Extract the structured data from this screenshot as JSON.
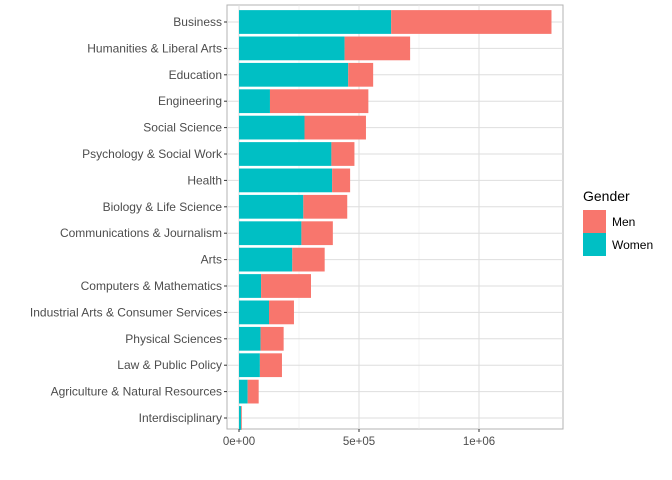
{
  "chart_data": {
    "type": "bar",
    "orientation": "horizontal",
    "stacked": true,
    "title": "",
    "xlabel": "",
    "ylabel": "",
    "categories": [
      "Business",
      "Humanities & Liberal Arts",
      "Education",
      "Engineering",
      "Social Science",
      "Psychology & Social Work",
      "Health",
      "Biology & Life Science",
      "Communications & Journalism",
      "Arts",
      "Computers & Mathematics",
      "Industrial Arts & Consumer Services",
      "Physical Sciences",
      "Law & Public Policy",
      "Agriculture & Natural Resources",
      "Interdisciplinary"
    ],
    "series": [
      {
        "name": "Women",
        "color": "#00BFC4",
        "values": [
          634000,
          440000,
          455000,
          129000,
          273000,
          385000,
          388000,
          268000,
          260000,
          222000,
          92000,
          125000,
          90000,
          87000,
          36000,
          9000
        ]
      },
      {
        "name": "Men",
        "color": "#F8766D",
        "values": [
          668000,
          273000,
          104000,
          410000,
          256000,
          96000,
          75000,
          183000,
          131000,
          135000,
          208000,
          104000,
          96000,
          92000,
          46000,
          3000
        ]
      }
    ],
    "xlim": [
      -50000,
      1350000
    ],
    "xticks": [
      0,
      500000,
      1000000
    ],
    "xtick_labels": [
      "0e+00",
      "5e+05",
      "1e+06"
    ],
    "grid": true,
    "legend": {
      "title": "Gender",
      "position": "right",
      "entries": [
        "Men",
        "Women"
      ]
    }
  }
}
